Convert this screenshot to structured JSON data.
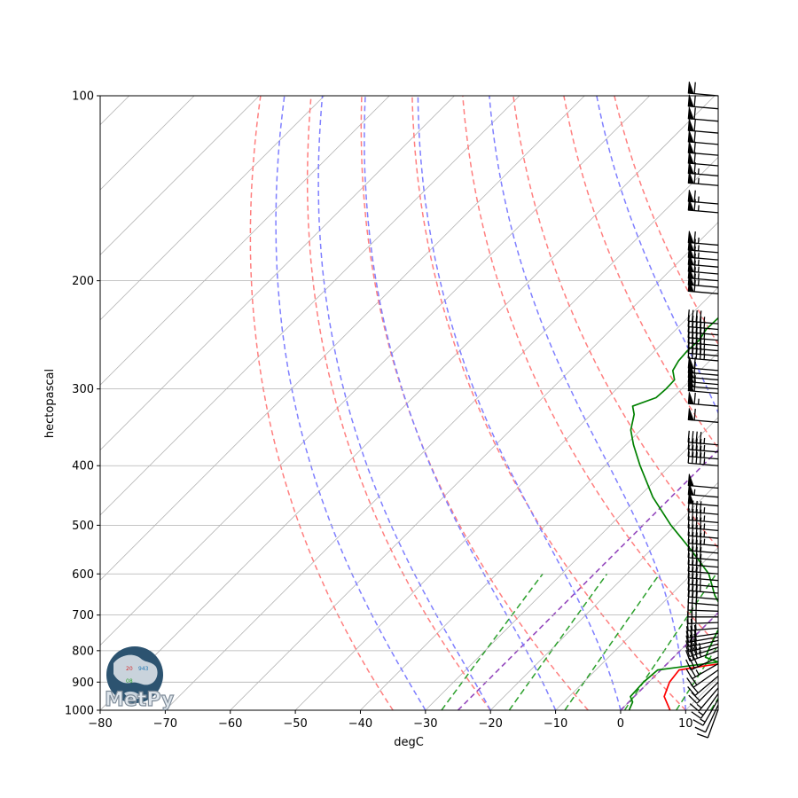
{
  "chart_data": {
    "type": "line",
    "title": "",
    "xlabel": "degC",
    "ylabel": "hectopascal",
    "xlim": [
      -80,
      15
    ],
    "ylim_pressure": [
      1000,
      100
    ],
    "y_log_scale": true,
    "x_ticks": [
      -80,
      -70,
      -60,
      -50,
      -40,
      -30,
      -20,
      -10,
      0,
      10
    ],
    "x_tick_labels": [
      "−80",
      "−70",
      "−60",
      "−50",
      "−40",
      "−30",
      "−20",
      "−10",
      "0",
      "10"
    ],
    "y_ticks": [
      1000,
      900,
      800,
      700,
      600,
      500,
      400,
      300,
      200,
      100
    ],
    "y_tick_labels": [
      "1000",
      "900",
      "800",
      "700",
      "600",
      "500",
      "400",
      "300",
      "200",
      "100"
    ],
    "series": [
      {
        "color": "#ff0000",
        "points": [
          [
            1000,
            7.6
          ],
          [
            950,
            4.6
          ],
          [
            900,
            3.2
          ],
          [
            860,
            2.8
          ],
          [
            845,
            6.6
          ],
          [
            825,
            13.6
          ],
          [
            800,
            11.6
          ],
          [
            760,
            8.9
          ],
          [
            700,
            6.2
          ],
          [
            650,
            5.2
          ],
          [
            600,
            4.6
          ],
          [
            550,
            2.4
          ],
          [
            500,
            -1.0
          ],
          [
            450,
            -6.1
          ],
          [
            400,
            -12.3
          ],
          [
            370,
            -16.4
          ],
          [
            350,
            -18.6
          ],
          [
            330,
            -20.2
          ],
          [
            320,
            -21.4
          ],
          [
            310,
            -22.9
          ],
          [
            300,
            -23.9
          ],
          [
            290,
            -25.7
          ],
          [
            280,
            -28.3
          ],
          [
            270,
            -29.7
          ],
          [
            260,
            -30.9
          ],
          [
            250,
            -32.3
          ],
          [
            240,
            -34.0
          ],
          [
            230,
            -35.1
          ],
          [
            220,
            -36.7
          ],
          [
            210,
            -38.6
          ],
          [
            200,
            -40.8
          ],
          [
            190,
            -44.0
          ],
          [
            180,
            -47.0
          ],
          [
            170,
            -50.2
          ],
          [
            160,
            -53.9
          ],
          [
            150,
            -57.4
          ],
          [
            140,
            -60.8
          ],
          [
            130,
            -63.6
          ],
          [
            120,
            -67.2
          ],
          [
            110,
            -71.5
          ],
          [
            100,
            -76.4
          ]
        ]
      },
      {
        "color": "#008000",
        "points": [
          [
            1000,
            1.3
          ],
          [
            970,
            0.6
          ],
          [
            950,
            -0.6
          ],
          [
            900,
            -0.8
          ],
          [
            860,
            -0.5
          ],
          [
            835,
            7.6
          ],
          [
            820,
            4.9
          ],
          [
            800,
            4.3
          ],
          [
            760,
            3.2
          ],
          [
            700,
            1.5
          ],
          [
            650,
            -3.2
          ],
          [
            600,
            -7.4
          ],
          [
            550,
            -13.6
          ],
          [
            500,
            -20.7
          ],
          [
            450,
            -27.8
          ],
          [
            400,
            -34.6
          ],
          [
            370,
            -38.8
          ],
          [
            350,
            -41.5
          ],
          [
            330,
            -43.4
          ],
          [
            320,
            -44.9
          ],
          [
            310,
            -42.6
          ],
          [
            300,
            -42.4
          ],
          [
            290,
            -42.5
          ],
          [
            280,
            -44.2
          ],
          [
            270,
            -44.8
          ],
          [
            260,
            -45.0
          ],
          [
            250,
            -44.8
          ],
          [
            240,
            -45.4
          ],
          [
            230,
            -45.3
          ],
          [
            220,
            -45.1
          ],
          [
            210,
            -45.5
          ],
          [
            200,
            -45.8
          ],
          [
            190,
            -47.0
          ],
          [
            180,
            -48.9
          ],
          [
            170,
            -50.6
          ],
          [
            160,
            -52.5
          ],
          [
            150,
            -54.3
          ],
          [
            140,
            -56.9
          ],
          [
            130,
            -59.1
          ],
          [
            120,
            -63.0
          ],
          [
            110,
            -67.8
          ],
          [
            100,
            -73.2
          ]
        ]
      }
    ],
    "reference_lines": {
      "isotherms_color": "#b3b3b3",
      "dry_adiabats_color": "#ff7f7f",
      "moist_adiabats_color": "#7f7fff",
      "mixing_ratio_color": "#2ca02c",
      "special_isotherms_color": "#9448bd",
      "dry_adiabat_surface_temps": [
        -35,
        -20,
        -5,
        10,
        25,
        40,
        55,
        70
      ],
      "moist_adiabat_surface_temps": [
        -30,
        -20,
        -10,
        0,
        10,
        20,
        30,
        40
      ],
      "mixing_ratios_gkg": [
        0.4,
        1,
        2,
        4,
        7,
        10,
        16
      ],
      "special_isotherms_degC": [
        -25,
        0
      ]
    },
    "wind_barbs": {
      "color": "#000000",
      "pressures": [
        997,
        980,
        960,
        940,
        920,
        900,
        880,
        860,
        840,
        820,
        800,
        790,
        780,
        770,
        760,
        750,
        735,
        720,
        705,
        690,
        675,
        660,
        645,
        630,
        615,
        600,
        585,
        570,
        555,
        540,
        525,
        510,
        495,
        480,
        465,
        450,
        435,
        400,
        390,
        380,
        370,
        340,
        320,
        305,
        300,
        295,
        290,
        285,
        280,
        270,
        265,
        260,
        255,
        250,
        245,
        240,
        235,
        210,
        205,
        200,
        195,
        190,
        185,
        180,
        175,
        155,
        150,
        140,
        135,
        130,
        125,
        120,
        115,
        110,
        105,
        100
      ],
      "speeds_kt": [
        10,
        10,
        15,
        15,
        15,
        20,
        20,
        20,
        25,
        30,
        35,
        35,
        35,
        30,
        30,
        30,
        25,
        25,
        25,
        30,
        30,
        30,
        35,
        35,
        35,
        40,
        40,
        40,
        40,
        45,
        45,
        45,
        45,
        45,
        50,
        55,
        50,
        45,
        45,
        45,
        45,
        60,
        65,
        60,
        60,
        55,
        55,
        60,
        60,
        45,
        45,
        45,
        45,
        45,
        45,
        45,
        45,
        60,
        65,
        65,
        65,
        65,
        65,
        65,
        65,
        65,
        65,
        65,
        65,
        60,
        60,
        60,
        60,
        60,
        60,
        60
      ],
      "directions_deg": [
        200,
        205,
        210,
        215,
        220,
        225,
        230,
        235,
        240,
        245,
        250,
        252,
        255,
        258,
        260,
        262,
        265,
        268,
        270,
        272,
        275,
        275,
        275,
        275,
        275,
        275,
        275,
        275,
        275,
        275,
        275,
        275,
        275,
        275,
        275,
        275,
        275,
        275,
        275,
        275,
        275,
        275,
        275,
        275,
        275,
        275,
        275,
        275,
        275,
        275,
        275,
        275,
        275,
        275,
        275,
        275,
        275,
        275,
        275,
        275,
        275,
        275,
        275,
        275,
        275,
        275,
        275,
        275,
        275,
        275,
        275,
        275,
        275,
        275,
        275,
        275
      ]
    },
    "grid": true,
    "legend": "none"
  },
  "logo": {
    "text": "MetPy",
    "icon": "globe-icon"
  }
}
